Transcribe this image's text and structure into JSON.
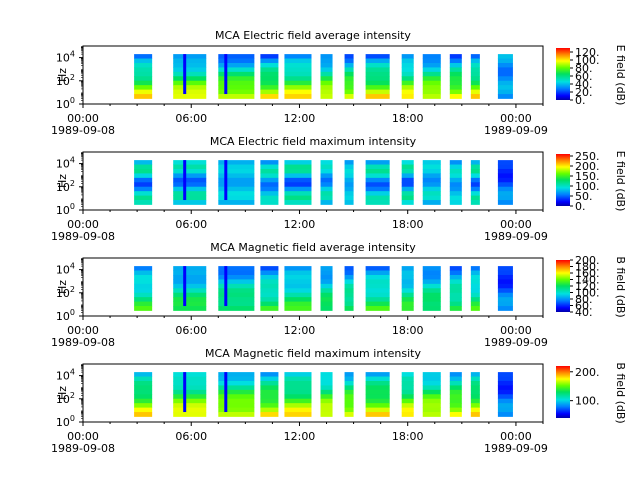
{
  "figure": {
    "x_ticks": [
      {
        "time": "00:00",
        "date": "1989-09-08"
      },
      {
        "time": "06:00",
        "date": ""
      },
      {
        "time": "12:00",
        "date": ""
      },
      {
        "time": "18:00",
        "date": ""
      },
      {
        "time": "00:00",
        "date": "1989-09-09"
      }
    ],
    "y_ticks": [
      "10^0",
      "10^2",
      "10^4"
    ]
  },
  "chart_data": [
    {
      "type": "heatmap",
      "title": "MCA  Electric field average intensity",
      "ylabel": "Hz",
      "xlim": [
        "1989-09-08T00:00",
        "1989-09-09T01:30"
      ],
      "ylim_hz": [
        1,
        100000
      ],
      "y_scale": "log",
      "colorbar": {
        "label": "E field (dB)",
        "range": [
          0,
          130
        ],
        "ticks": [
          "120.",
          "100.",
          "80.",
          "60.",
          "40.",
          "20.",
          "0."
        ]
      },
      "data_segments": [
        [
          "02:50",
          "03:50"
        ],
        [
          "05:00",
          "06:50"
        ],
        [
          "07:30",
          "09:30"
        ],
        [
          "09:50",
          "10:50"
        ],
        [
          "11:10",
          "12:40"
        ],
        [
          "13:10",
          "13:50"
        ],
        [
          "14:30",
          "15:00"
        ],
        [
          "15:40",
          "17:00"
        ],
        [
          "17:40",
          "18:20"
        ],
        [
          "18:50",
          "19:50"
        ],
        [
          "20:20",
          "21:00"
        ],
        [
          "21:30",
          "22:00"
        ],
        [
          "23:00",
          "23:50"
        ]
      ]
    },
    {
      "type": "heatmap",
      "title": "MCA  Electric field maximum intensity",
      "ylabel": "Hz",
      "xlim": [
        "1989-09-08T00:00",
        "1989-09-09T01:30"
      ],
      "ylim_hz": [
        1,
        100000
      ],
      "y_scale": "log",
      "colorbar": {
        "label": "E field (dB)",
        "range": [
          0,
          260
        ],
        "ticks": [
          "250.",
          "200.",
          "150.",
          "100.",
          "50.",
          "0."
        ]
      },
      "data_segments": [
        [
          "02:50",
          "03:50"
        ],
        [
          "05:00",
          "06:50"
        ],
        [
          "07:30",
          "09:30"
        ],
        [
          "09:50",
          "10:50"
        ],
        [
          "11:10",
          "12:40"
        ],
        [
          "13:10",
          "13:50"
        ],
        [
          "14:30",
          "15:00"
        ],
        [
          "15:40",
          "17:00"
        ],
        [
          "17:40",
          "18:20"
        ],
        [
          "18:50",
          "19:50"
        ],
        [
          "20:20",
          "21:00"
        ],
        [
          "21:30",
          "22:00"
        ],
        [
          "23:00",
          "23:50"
        ]
      ]
    },
    {
      "type": "heatmap",
      "title": "MCA  Magnetic field average intensity",
      "ylabel": "Hz",
      "xlim": [
        "1989-09-08T00:00",
        "1989-09-09T01:30"
      ],
      "ylim_hz": [
        1,
        100000
      ],
      "y_scale": "log",
      "colorbar": {
        "label": "B field (dB)",
        "range": [
          40,
          200
        ],
        "ticks": [
          "200.",
          "180.",
          "160.",
          "140.",
          "120.",
          "100.",
          "80.",
          "60.",
          "40."
        ]
      },
      "data_segments": [
        [
          "02:50",
          "03:50"
        ],
        [
          "05:00",
          "06:50"
        ],
        [
          "07:30",
          "09:30"
        ],
        [
          "09:50",
          "10:50"
        ],
        [
          "11:10",
          "12:40"
        ],
        [
          "13:10",
          "13:50"
        ],
        [
          "14:30",
          "15:00"
        ],
        [
          "15:40",
          "17:00"
        ],
        [
          "17:40",
          "18:20"
        ],
        [
          "18:50",
          "19:50"
        ],
        [
          "20:20",
          "21:00"
        ],
        [
          "21:30",
          "22:00"
        ],
        [
          "23:00",
          "23:50"
        ]
      ]
    },
    {
      "type": "heatmap",
      "title": "MCA  Magnetic field maximum intensity",
      "ylabel": "Hz",
      "xlim": [
        "1989-09-08T00:00",
        "1989-09-09T01:30"
      ],
      "ylim_hz": [
        1,
        100000
      ],
      "y_scale": "log",
      "colorbar": {
        "label": "B field (dB)",
        "range": [
          40,
          220
        ],
        "ticks": [
          "200.",
          "100."
        ]
      },
      "data_segments": [
        [
          "02:50",
          "03:50"
        ],
        [
          "05:00",
          "06:50"
        ],
        [
          "07:30",
          "09:30"
        ],
        [
          "09:50",
          "10:50"
        ],
        [
          "11:10",
          "12:40"
        ],
        [
          "13:10",
          "13:50"
        ],
        [
          "14:30",
          "15:00"
        ],
        [
          "15:40",
          "17:00"
        ],
        [
          "17:40",
          "18:20"
        ],
        [
          "18:50",
          "19:50"
        ],
        [
          "20:20",
          "21:00"
        ],
        [
          "21:30",
          "22:00"
        ],
        [
          "23:00",
          "23:50"
        ]
      ]
    }
  ]
}
